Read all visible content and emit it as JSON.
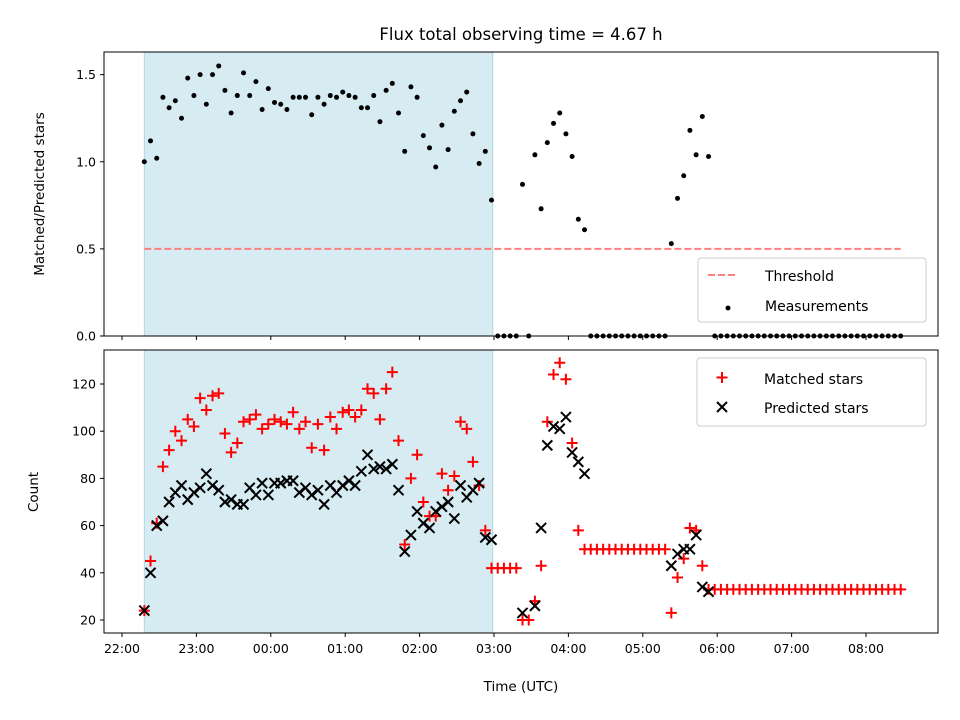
{
  "chart_data": [
    {
      "type": "scatter",
      "title": "Flux total observing time = 4.67 h",
      "xlabel": "",
      "ylabel": "Matched/Predicted stars",
      "x_start": "22:18",
      "step_minutes": 5,
      "ylim": [
        0,
        1.63
      ],
      "yticks": [
        "0.0",
        "0.5",
        "1.0",
        "1.5"
      ],
      "shaded_span": {
        "from": "22:18",
        "to": "02:59",
        "color": "#add8e6"
      },
      "threshold": {
        "name": "Threshold",
        "value": 0.5,
        "color": "#ff7f7f",
        "from": "22:18",
        "to": "08:28"
      },
      "series": [
        {
          "name": "Measurements",
          "color": "#000000",
          "values": [
            1.0,
            1.12,
            1.02,
            1.37,
            1.31,
            1.35,
            1.25,
            1.48,
            1.38,
            1.5,
            1.33,
            1.5,
            1.55,
            1.41,
            1.28,
            1.38,
            1.51,
            1.38,
            1.46,
            1.3,
            1.42,
            1.34,
            1.33,
            1.3,
            1.37,
            1.37,
            1.37,
            1.27,
            1.37,
            1.33,
            1.38,
            1.37,
            1.4,
            1.38,
            1.37,
            1.31,
            1.31,
            1.38,
            1.23,
            1.41,
            1.45,
            1.28,
            1.06,
            1.43,
            1.37,
            1.15,
            1.08,
            0.97,
            1.21,
            1.07,
            1.29,
            1.35,
            1.4,
            1.16,
            0.99,
            1.06,
            0.78,
            0,
            0,
            0,
            0,
            0.87,
            0,
            1.04,
            0.73,
            1.11,
            1.22,
            1.28,
            1.16,
            1.03,
            0.67,
            0.61,
            0,
            0,
            0,
            0,
            0,
            0,
            0,
            0,
            0,
            0,
            0,
            0,
            0,
            0.53,
            0.79,
            0.92,
            1.18,
            1.04,
            1.26,
            1.03,
            0,
            0,
            0,
            0,
            0,
            0,
            0,
            0,
            0,
            0,
            0,
            0,
            0,
            0,
            0,
            0,
            0,
            0,
            0,
            0,
            0,
            0,
            0,
            0,
            0,
            0,
            0,
            0,
            0,
            0,
            0
          ]
        }
      ],
      "legend": {
        "placement": "lower-right",
        "entries": [
          "Threshold",
          "Measurements"
        ]
      }
    },
    {
      "type": "scatter",
      "title": "",
      "xlabel": "Time (UTC)",
      "ylabel": "Count",
      "x_start": "22:18",
      "step_minutes": 5,
      "xlim_hours_after_22": [
        -0.24,
        10.97
      ],
      "xticks": [
        "22:00",
        "23:00",
        "00:00",
        "01:00",
        "02:00",
        "03:00",
        "04:00",
        "05:00",
        "06:00",
        "07:00",
        "08:00"
      ],
      "ylim": [
        14.5,
        134.4
      ],
      "yticks": [
        "20",
        "40",
        "60",
        "80",
        "100",
        "120"
      ],
      "series": [
        {
          "name": "Matched stars",
          "color": "#ff0000",
          "marker": "+",
          "values": [
            24,
            45,
            61,
            85,
            92,
            100,
            96,
            105,
            102,
            114,
            109,
            115,
            116,
            99,
            91,
            95,
            104,
            105,
            107,
            101,
            103,
            105,
            104,
            103,
            108,
            101,
            104,
            93,
            103,
            92,
            106,
            101,
            108,
            109,
            106,
            109,
            118,
            116,
            105,
            118,
            125,
            96,
            52,
            80,
            90,
            70,
            64,
            64,
            82,
            75,
            81,
            104,
            101,
            87,
            77,
            58,
            42,
            42,
            42,
            42,
            42,
            20,
            20,
            28,
            43,
            104,
            124,
            129,
            122,
            95,
            58,
            50,
            50,
            50,
            50,
            50,
            50,
            50,
            50,
            50,
            50,
            50,
            50,
            50,
            50,
            23,
            38,
            46,
            59,
            58,
            43,
            33,
            33,
            33,
            33,
            33,
            33,
            33,
            33,
            33,
            33,
            33,
            33,
            33,
            33,
            33,
            33,
            33,
            33,
            33,
            33,
            33,
            33,
            33,
            33,
            33,
            33,
            33,
            33,
            33,
            33,
            33,
            33
          ]
        },
        {
          "name": "Predicted stars",
          "color": "#000000",
          "marker": "x",
          "values": [
            24,
            40,
            60,
            62,
            70,
            74,
            77,
            71,
            74,
            76,
            82,
            77,
            75,
            70,
            71,
            69,
            69,
            76,
            73,
            78,
            73,
            78,
            78,
            79,
            79,
            74,
            76,
            73,
            75,
            69,
            77,
            74,
            77,
            79,
            77,
            83,
            90,
            84,
            85,
            84,
            86,
            75,
            49,
            56,
            66,
            61,
            59,
            66,
            68,
            70,
            63,
            77,
            72,
            75,
            78,
            55,
            54,
            null,
            null,
            null,
            null,
            23,
            null,
            26,
            59,
            94,
            102,
            101,
            106,
            91,
            87,
            82,
            null,
            null,
            null,
            null,
            null,
            null,
            null,
            null,
            null,
            null,
            null,
            null,
            null,
            43,
            48,
            50,
            50,
            56,
            34,
            32,
            null,
            null,
            null,
            null,
            null,
            null,
            null,
            null,
            null,
            null,
            null,
            null,
            null,
            null,
            null,
            null,
            null,
            null,
            null,
            null,
            null,
            null,
            null,
            null,
            null,
            null,
            null,
            null,
            null,
            null,
            null
          ]
        }
      ],
      "legend": {
        "placement": "upper-right",
        "entries": [
          "Matched stars",
          "Predicted stars"
        ]
      }
    }
  ]
}
